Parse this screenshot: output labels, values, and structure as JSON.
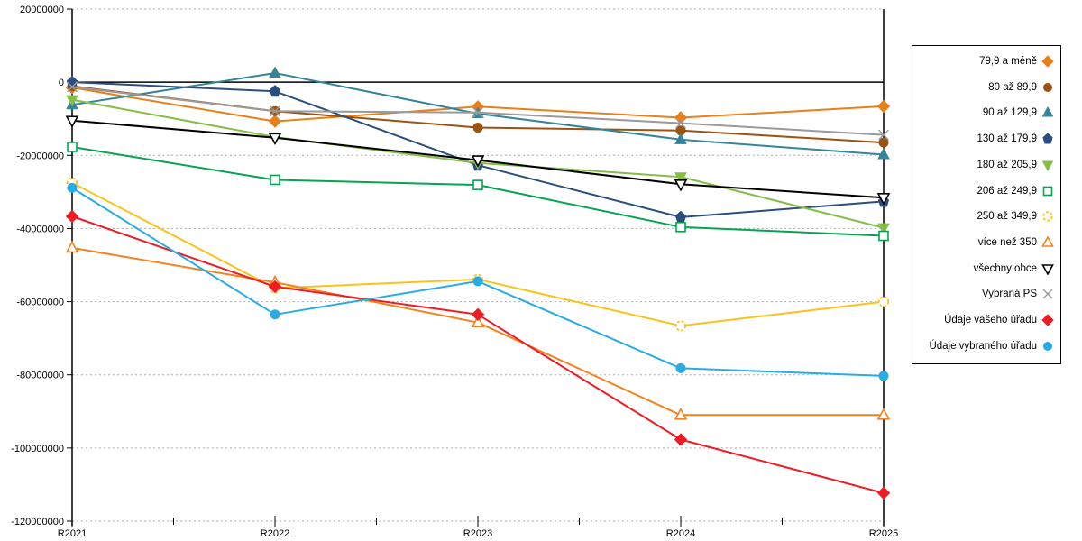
{
  "chart_data": {
    "type": "line",
    "title": "",
    "xlabel": "",
    "ylabel": "",
    "categories": [
      "R2021",
      "R2022",
      "R2023",
      "R2024",
      "R2025"
    ],
    "ylim": [
      -120000000,
      20000000
    ],
    "y_ticks": [
      20000000,
      0,
      -20000000,
      -40000000,
      -60000000,
      -80000000,
      -100000000,
      -120000000
    ],
    "y_tick_labels": [
      "20000000",
      "0",
      "-20000000",
      "-40000000",
      "-60000000",
      "-80000000",
      "-100000000",
      "-120000000"
    ],
    "grid": "horizontal-dotted",
    "legend_position": "right",
    "colors": {
      "grid": "#ADADAD",
      "axis": "#000000",
      "zero_line": "#000000"
    },
    "series": [
      {
        "name": "79,9 a méně",
        "color": "#E8801A",
        "marker": "diamond",
        "fill": "filled",
        "values": [
          -1500000,
          -10700000,
          -6700000,
          -9700000,
          -6600000
        ]
      },
      {
        "name": "80 až 89,9",
        "color": "#9C5211",
        "marker": "circle",
        "fill": "filled",
        "values": [
          -1100000,
          -7900000,
          -12400000,
          -13200000,
          -16500000
        ]
      },
      {
        "name": "90 až 129,9",
        "color": "#35859B",
        "marker": "triangle-up",
        "fill": "filled",
        "values": [
          -6200000,
          2500000,
          -8600000,
          -15700000,
          -19800000
        ]
      },
      {
        "name": "130 až 179,9",
        "color": "#2A4F7E",
        "marker": "pentagon",
        "fill": "filled",
        "values": [
          0,
          -2500000,
          -22700000,
          -36900000,
          -32600000
        ]
      },
      {
        "name": "180 až 205,9",
        "color": "#86BD47",
        "marker": "triangle-down",
        "fill": "filled",
        "values": [
          -4800000,
          -15000000,
          -22100000,
          -25900000,
          -39800000
        ]
      },
      {
        "name": "206 až 249,9",
        "color": "#04A452",
        "marker": "square",
        "fill": "hollow",
        "values": [
          -17700000,
          -26700000,
          -28100000,
          -39600000,
          -42000000
        ]
      },
      {
        "name": "250 až 349,9",
        "color": "#FBC31A",
        "marker": "circle-dashed",
        "fill": "hollow",
        "values": [
          -27500000,
          -56300000,
          -53900000,
          -66600000,
          -60000000
        ]
      },
      {
        "name": "více než 350",
        "color": "#F58220",
        "marker": "triangle-up",
        "fill": "hollow",
        "values": [
          -45300000,
          -54700000,
          -65700000,
          -91000000,
          -91000000
        ]
      },
      {
        "name": "všechny obce",
        "color": "#000000",
        "marker": "triangle-down",
        "fill": "hollow",
        "values": [
          -10500000,
          -15200000,
          -21300000,
          -27900000,
          -31600000
        ]
      },
      {
        "name": "Vybraná PS",
        "color": "#9A9A9A",
        "marker": "x-cross",
        "fill": "hollow",
        "values": [
          -1300000,
          -7900000,
          -8300000,
          -11200000,
          -14400000
        ]
      },
      {
        "name": "Údaje vašeho úřadu",
        "color": "#EE1C23",
        "marker": "diamond",
        "fill": "filled",
        "values": [
          -36700000,
          -55900000,
          -63500000,
          -97700000,
          -112300000
        ]
      },
      {
        "name": "Údaje vybraného úřadu",
        "color": "#29ACE3",
        "marker": "circle",
        "fill": "filled",
        "values": [
          -28900000,
          -63500000,
          -54400000,
          -78200000,
          -80300000
        ]
      }
    ]
  }
}
